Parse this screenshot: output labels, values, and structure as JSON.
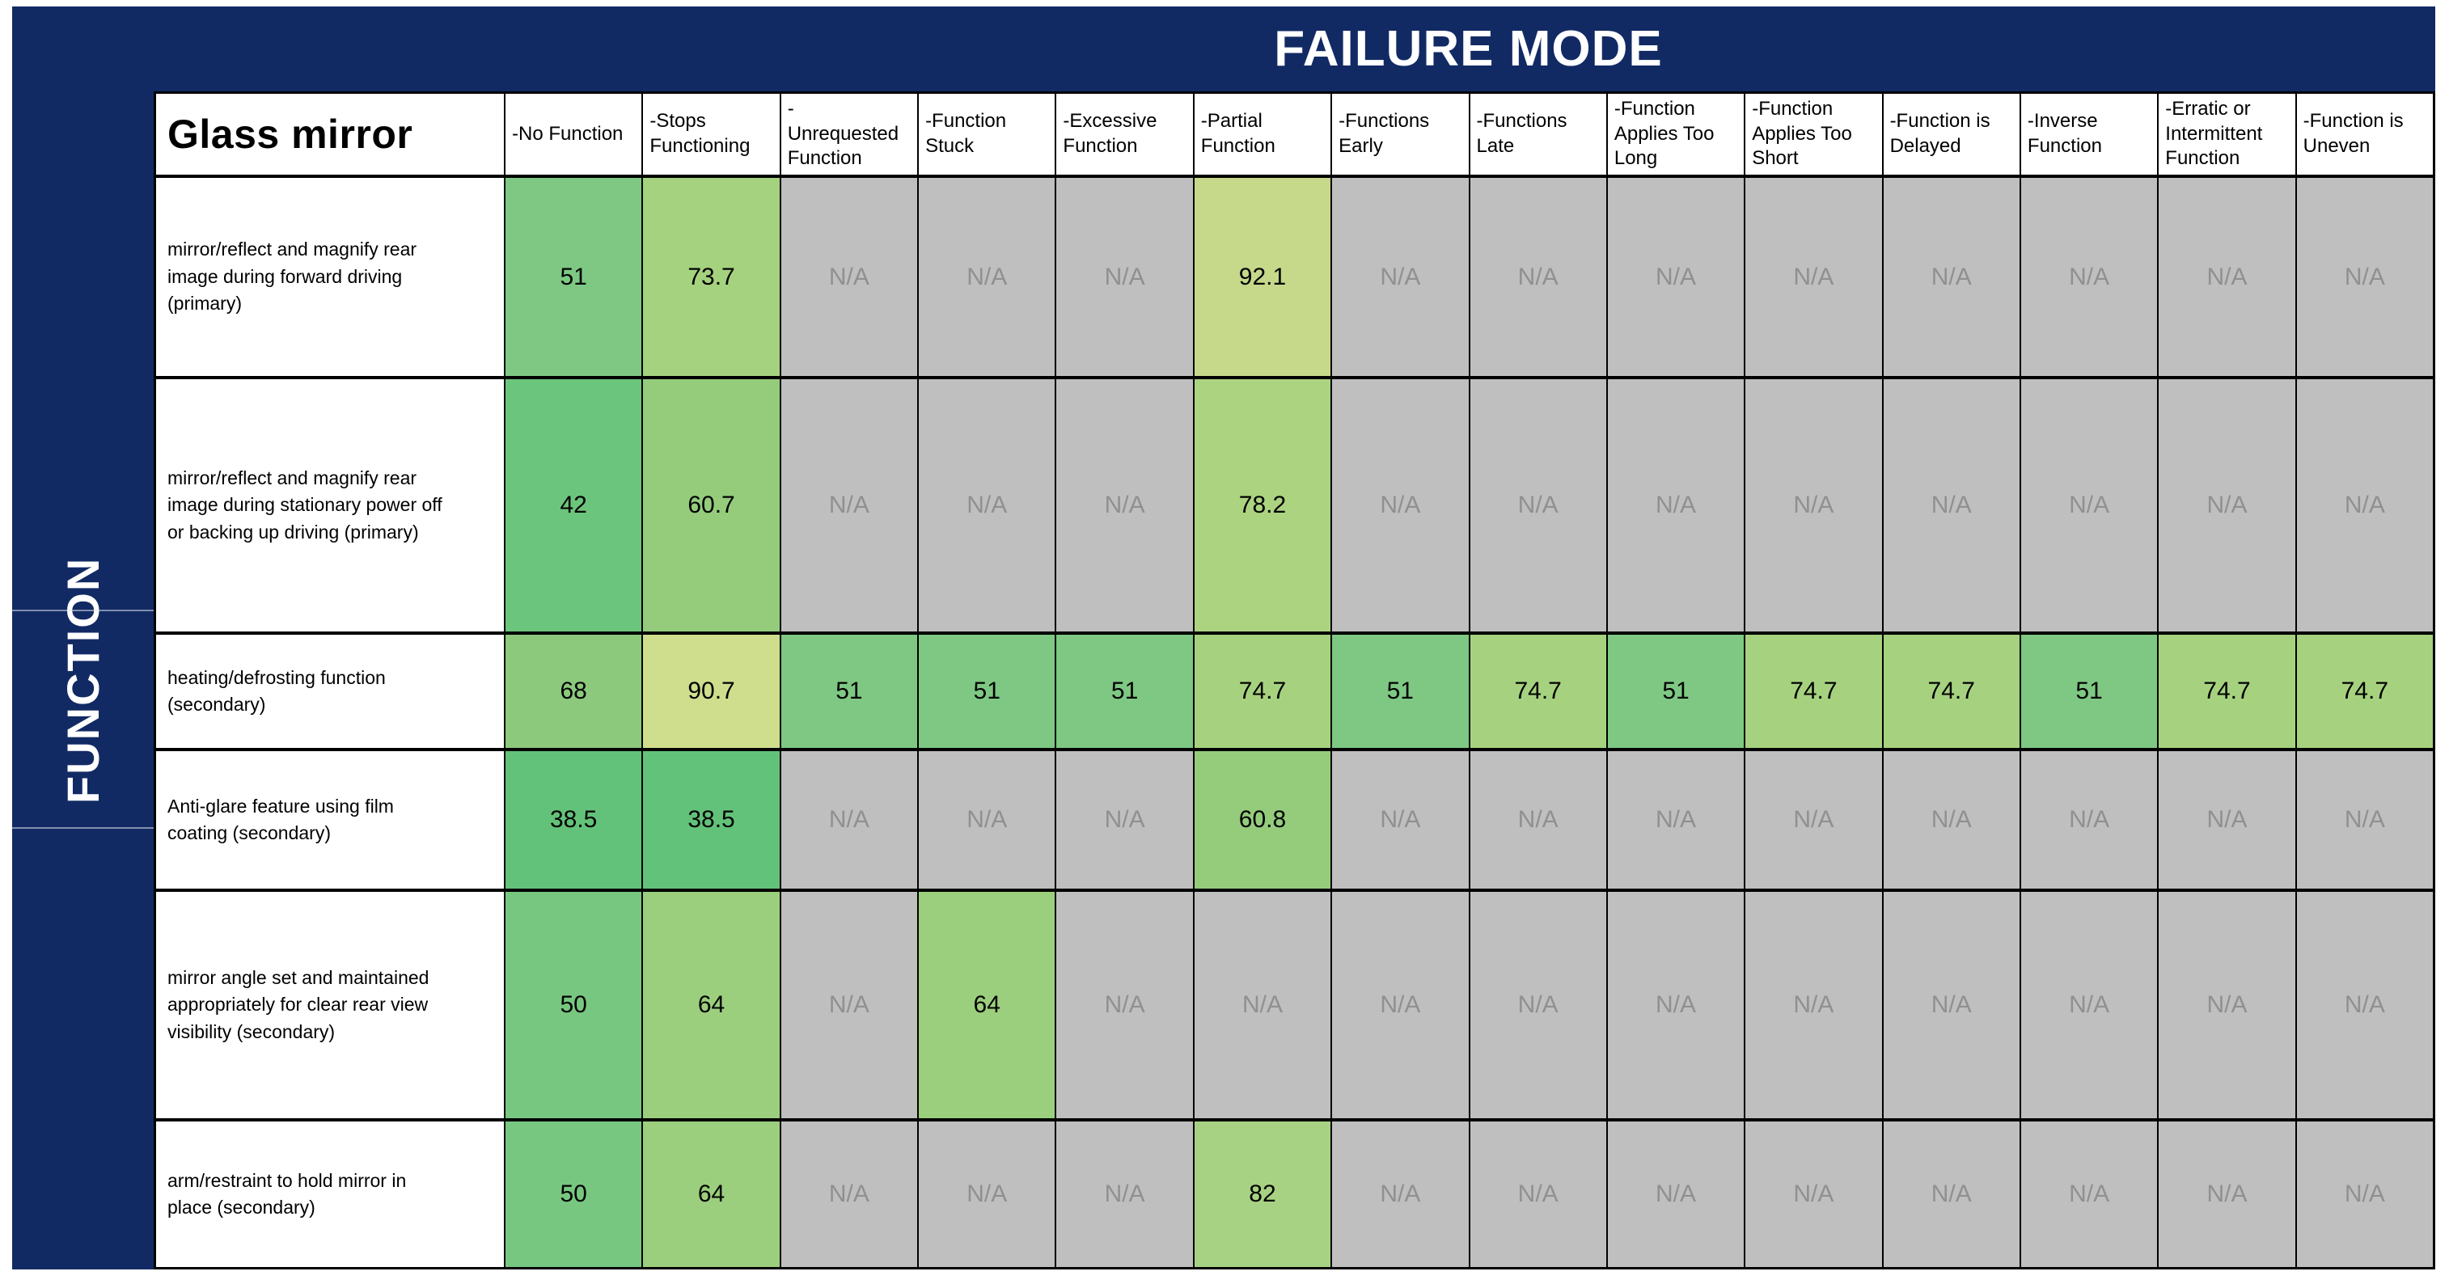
{
  "banner": {
    "failure_mode": "FAILURE MODE",
    "function": "FUNCTION"
  },
  "colors": {
    "navy": "#122a64",
    "na_bg": "#bfbfbf",
    "na_text": "#909090",
    "border": "#000000"
  },
  "table": {
    "corner_label": "Glass mirror",
    "na_label": "N/A",
    "failure_modes": [
      "-No Function",
      "-Stops\nFunctioning",
      "-\nUnrequested\nFunction",
      "-Function\nStuck",
      "-Excessive\nFunction",
      "-Partial\nFunction",
      "-Functions\nEarly",
      "-Functions\nLate",
      "-Function\nApplies Too\nLong",
      "-Function\nApplies Too\nShort",
      "-Function is\nDelayed",
      "-Inverse\nFunction",
      "-Erratic or\nIntermittent\nFunction",
      "-Function is\nUneven"
    ],
    "rows": [
      {
        "function": "mirror/reflect and magnify rear\nimage during forward driving\n(primary)",
        "cells": [
          {
            "v": "51",
            "bg": "#7ec883"
          },
          {
            "v": "73.7",
            "bg": "#a5d27e"
          },
          {
            "na": true
          },
          {
            "na": true
          },
          {
            "na": true
          },
          {
            "v": "92.1",
            "bg": "#c6d88a"
          },
          {
            "na": true
          },
          {
            "na": true
          },
          {
            "na": true
          },
          {
            "na": true
          },
          {
            "na": true
          },
          {
            "na": true
          },
          {
            "na": true
          },
          {
            "na": true
          }
        ]
      },
      {
        "function": "mirror/reflect and magnify rear\nimage during stationary power off\nor backing up  driving (primary)",
        "cells": [
          {
            "v": "42",
            "bg": "#6cc57c"
          },
          {
            "v": "60.7",
            "bg": "#94cc7c"
          },
          {
            "na": true
          },
          {
            "na": true
          },
          {
            "na": true
          },
          {
            "v": "78.2",
            "bg": "#acd380"
          },
          {
            "na": true
          },
          {
            "na": true
          },
          {
            "na": true
          },
          {
            "na": true
          },
          {
            "na": true
          },
          {
            "na": true
          },
          {
            "na": true
          },
          {
            "na": true
          }
        ]
      },
      {
        "function": "heating/defrosting function\n(secondary)",
        "cells": [
          {
            "v": "68",
            "bg": "#8cc97d"
          },
          {
            "v": "90.7",
            "bg": "#cede8d"
          },
          {
            "v": "51",
            "bg": "#7ec883"
          },
          {
            "v": "51",
            "bg": "#7ec883"
          },
          {
            "v": "51",
            "bg": "#7ec883"
          },
          {
            "v": "74.7",
            "bg": "#a6d27f"
          },
          {
            "v": "51",
            "bg": "#7ec883"
          },
          {
            "v": "74.7",
            "bg": "#a6d27f"
          },
          {
            "v": "51",
            "bg": "#7ec883"
          },
          {
            "v": "74.7",
            "bg": "#a6d27f"
          },
          {
            "v": "74.7",
            "bg": "#a6d27f"
          },
          {
            "v": "51",
            "bg": "#7ec883"
          },
          {
            "v": "74.7",
            "bg": "#a6d27f"
          },
          {
            "v": "74.7",
            "bg": "#a6d27f"
          }
        ]
      },
      {
        "function": "Anti-glare feature using film\ncoating (secondary)",
        "cells": [
          {
            "v": "38.5",
            "bg": "#63c279"
          },
          {
            "v": "38.5",
            "bg": "#63c279"
          },
          {
            "na": true
          },
          {
            "na": true
          },
          {
            "na": true
          },
          {
            "v": "60.8",
            "bg": "#94cc7c"
          },
          {
            "na": true
          },
          {
            "na": true
          },
          {
            "na": true
          },
          {
            "na": true
          },
          {
            "na": true
          },
          {
            "na": true
          },
          {
            "na": true
          },
          {
            "na": true
          }
        ]
      },
      {
        "function": "mirror angle set and maintained\nappropriately for clear rear view\nvisibility  (secondary)",
        "cells": [
          {
            "v": "50",
            "bg": "#78c780"
          },
          {
            "v": "64",
            "bg": "#9ccf7d"
          },
          {
            "na": true
          },
          {
            "v": "64",
            "bg": "#9ccf7d"
          },
          {
            "na": true
          },
          {
            "na": true
          },
          {
            "na": true
          },
          {
            "na": true
          },
          {
            "na": true
          },
          {
            "na": true
          },
          {
            "na": true
          },
          {
            "na": true
          },
          {
            "na": true
          },
          {
            "na": true
          }
        ]
      },
      {
        "function": "arm/restraint to hold mirror in\nplace (secondary)",
        "cells": [
          {
            "v": "50",
            "bg": "#78c780"
          },
          {
            "v": "64",
            "bg": "#9ccf7d"
          },
          {
            "na": true
          },
          {
            "na": true
          },
          {
            "na": true
          },
          {
            "v": "82",
            "bg": "#a8d283"
          },
          {
            "na": true
          },
          {
            "na": true
          },
          {
            "na": true
          },
          {
            "na": true
          },
          {
            "na": true
          },
          {
            "na": true
          },
          {
            "na": true
          },
          {
            "na": true
          }
        ]
      }
    ]
  },
  "chart_data": {
    "type": "heatmap",
    "title": "FAILURE MODE",
    "ylabel": "FUNCTION",
    "x_categories": [
      "-No Function",
      "-Stops Functioning",
      "-Unrequested Function",
      "-Function Stuck",
      "-Excessive Function",
      "-Partial Function",
      "-Functions Early",
      "-Functions Late",
      "-Function Applies Too Long",
      "-Function Applies Too Short",
      "-Function is Delayed",
      "-Inverse Function",
      "-Erratic or Intermittent Function",
      "-Function is Uneven"
    ],
    "y_categories": [
      "mirror/reflect and magnify rear image during forward driving (primary)",
      "mirror/reflect and magnify rear image during stationary power off or backing up driving (primary)",
      "heating/defrosting function (secondary)",
      "Anti-glare feature using film coating (secondary)",
      "mirror angle set and maintained appropriately for clear rear view visibility (secondary)",
      "arm/restraint to hold mirror in place (secondary)"
    ],
    "values": [
      [
        51,
        73.7,
        "N/A",
        "N/A",
        "N/A",
        92.1,
        "N/A",
        "N/A",
        "N/A",
        "N/A",
        "N/A",
        "N/A",
        "N/A",
        "N/A"
      ],
      [
        42,
        60.7,
        "N/A",
        "N/A",
        "N/A",
        78.2,
        "N/A",
        "N/A",
        "N/A",
        "N/A",
        "N/A",
        "N/A",
        "N/A",
        "N/A"
      ],
      [
        68,
        90.7,
        51,
        51,
        51,
        74.7,
        51,
        74.7,
        51,
        74.7,
        74.7,
        51,
        74.7,
        74.7
      ],
      [
        38.5,
        38.5,
        "N/A",
        "N/A",
        "N/A",
        60.8,
        "N/A",
        "N/A",
        "N/A",
        "N/A",
        "N/A",
        "N/A",
        "N/A",
        "N/A"
      ],
      [
        50,
        64,
        "N/A",
        64,
        "N/A",
        "N/A",
        "N/A",
        "N/A",
        "N/A",
        "N/A",
        "N/A",
        "N/A",
        "N/A",
        "N/A"
      ],
      [
        50,
        64,
        "N/A",
        "N/A",
        "N/A",
        82,
        "N/A",
        "N/A",
        "N/A",
        "N/A",
        "N/A",
        "N/A",
        "N/A",
        "N/A"
      ]
    ]
  }
}
